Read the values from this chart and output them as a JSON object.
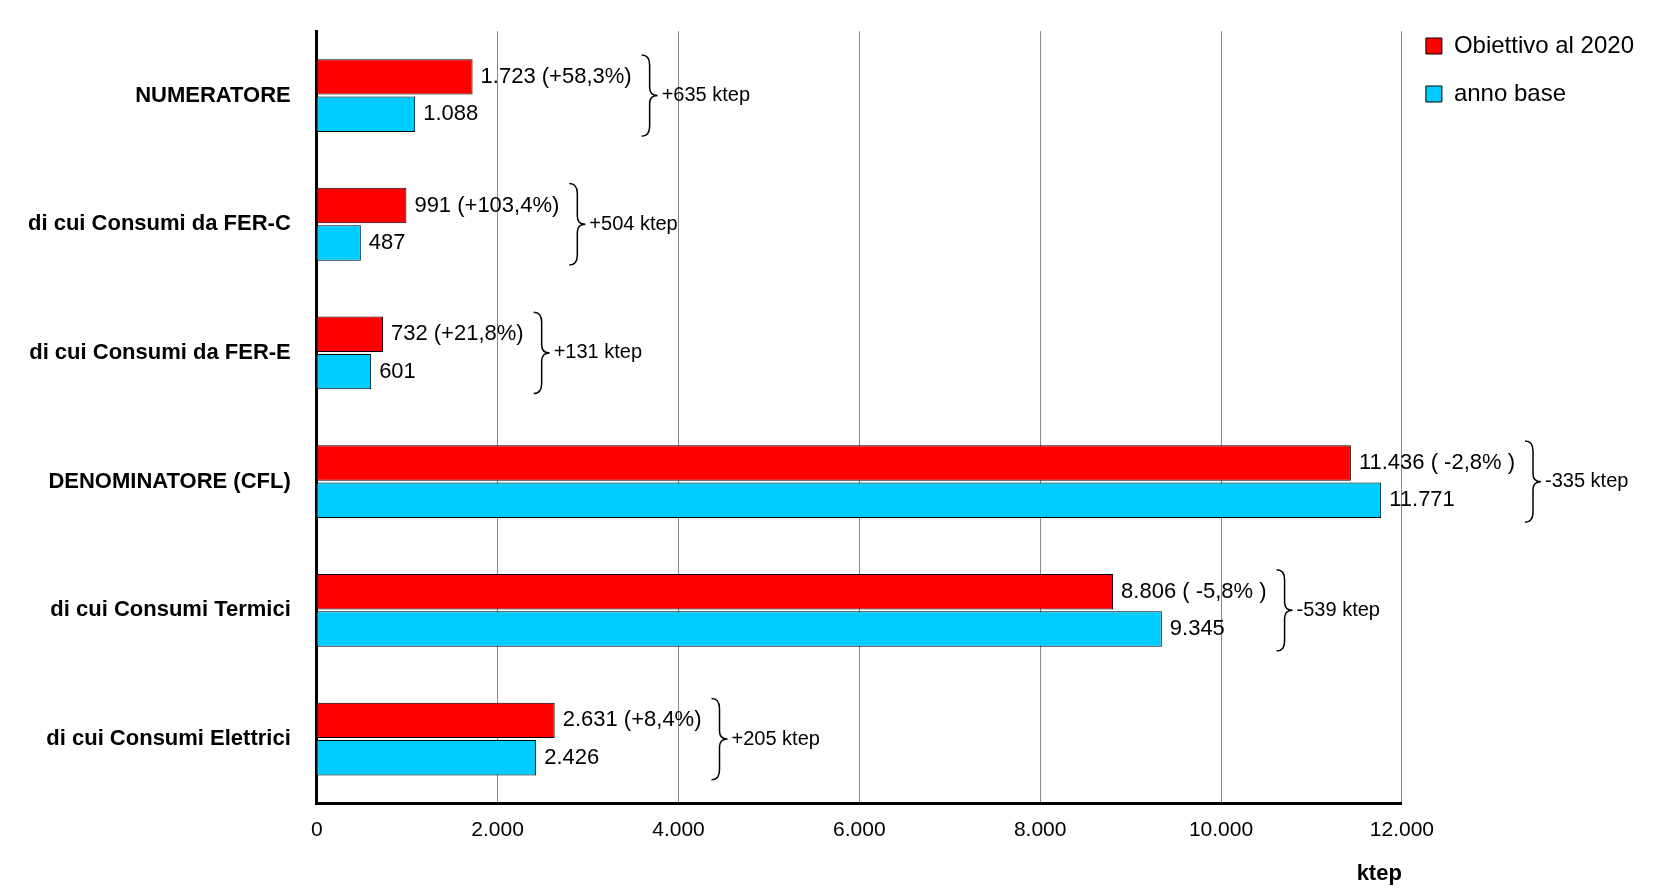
{
  "chart_data": {
    "type": "bar",
    "orientation": "horizontal",
    "xlabel": "ktep",
    "categories": [
      "NUMERATORE",
      "di cui Consumi da FER-C",
      "di cui Consumi da FER-E",
      "DENOMINATORE (CFL)",
      "di cui Consumi Termici",
      "di cui Consumi Elettrici"
    ],
    "series": [
      {
        "name": "Obiettivo al 2020",
        "color": "#ff0000",
        "values": [
          1723,
          991,
          732,
          11436,
          8806,
          2631
        ],
        "value_labels": [
          "1.723 (+58,3%)",
          "991 (+103,4%)",
          "732 (+21,8%)",
          "11.436 ( -2,8% )",
          "8.806 ( -5,8% )",
          "2.631 (+8,4%)"
        ]
      },
      {
        "name": "anno base",
        "color": "#00ccff",
        "values": [
          1088,
          487,
          601,
          11771,
          9345,
          2426
        ],
        "value_labels": [
          "1.088",
          "487",
          "601",
          "11.771",
          "9.345",
          "2.426"
        ]
      }
    ],
    "xlim": [
      0,
      12000
    ],
    "xticks": [
      0,
      {
        "value": 2000,
        "label": "2.000"
      },
      {
        "value": 4000,
        "label": "4.000"
      },
      {
        "value": 6000,
        "label": "6.000"
      },
      {
        "value": 8000,
        "label": "8.000"
      },
      {
        "value": 10000,
        "label": "10.000"
      },
      {
        "value": 12000,
        "label": "12.000"
      }
    ],
    "grid": "x",
    "legend": "top right",
    "annotations": [
      "+635 ktep",
      "+504 ktep",
      "+131 ktep",
      "-335 ktep",
      "-539 ktep",
      "+205 ktep"
    ]
  }
}
